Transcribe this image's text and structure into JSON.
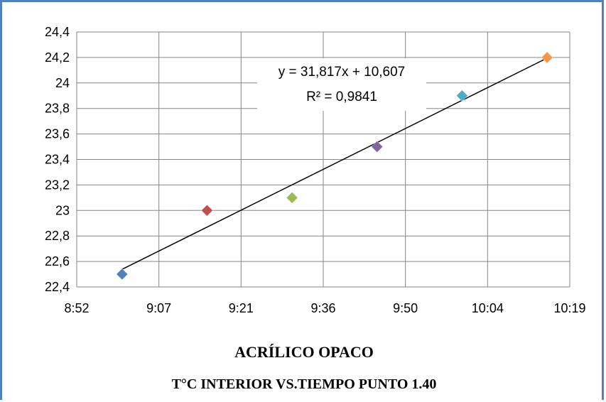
{
  "chart_data": {
    "type": "scatter",
    "title": "ACRÍLICO OPACO",
    "subtitle": "T°C INTERIOR VS.TIEMPO PUNTO 1.40",
    "xlabel": "",
    "ylabel": "",
    "x_ticks": [
      "8:52",
      "9:07",
      "9:21",
      "9:36",
      "9:50",
      "10:04",
      "10:19"
    ],
    "y_ticks": [
      "22,4",
      "22,6",
      "22,8",
      "23",
      "23,2",
      "23,4",
      "23,6",
      "23,8",
      "24",
      "24,2",
      "24,4"
    ],
    "xlim": [
      "8:52",
      "10:19"
    ],
    "ylim": [
      22.4,
      24.4
    ],
    "grid": true,
    "points": [
      {
        "x": "9:00",
        "y": 22.5,
        "color": "#4f81bd"
      },
      {
        "x": "9:15",
        "y": 23.0,
        "color": "#c0504d"
      },
      {
        "x": "9:30",
        "y": 23.1,
        "color": "#9bbb59"
      },
      {
        "x": "9:45",
        "y": 23.5,
        "color": "#8064a2"
      },
      {
        "x": "10:00",
        "y": 23.9,
        "color": "#4bacc6"
      },
      {
        "x": "10:15",
        "y": 24.2,
        "color": "#f79646"
      }
    ],
    "trendline": {
      "type": "linear",
      "equation": "y = 31,817x + 10,607",
      "r2": "R² = 0,9841",
      "color": "#000000"
    }
  }
}
